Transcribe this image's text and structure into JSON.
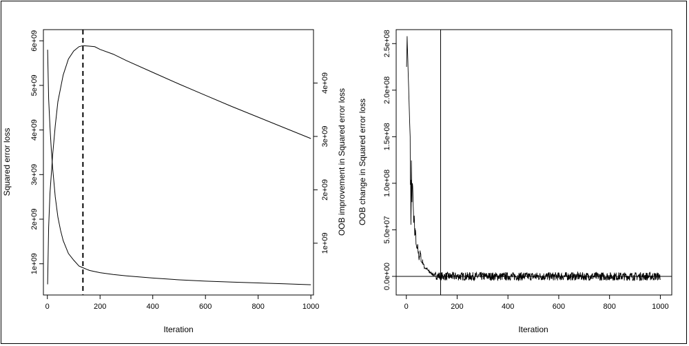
{
  "chart_data": [
    {
      "type": "line",
      "title": "",
      "xlabel": "Iteration",
      "ylabel": "Squared error loss",
      "ylabel_right": "OOB improvement in Squared error loss",
      "xlim": [
        0,
        1000
      ],
      "ylim": [
        530000000,
        6000000000
      ],
      "ylim_right": [
        230000000,
        4800000000
      ],
      "x_ticks": [
        "0",
        "200",
        "400",
        "600",
        "800",
        "1000"
      ],
      "y_ticks": [
        "1e+09",
        "2e+09",
        "3e+09",
        "4e+09",
        "5e+09",
        "6e+09"
      ],
      "y_ticks_right": [
        "1e+09",
        "2e+09",
        "3e+09",
        "4e+09"
      ],
      "vline": {
        "x": 135,
        "style": "dashed"
      },
      "grid": false,
      "series": [
        {
          "axis": "left",
          "x": [
            1,
            5,
            10,
            15,
            20,
            30,
            40,
            50,
            60,
            80,
            100,
            120,
            135,
            160,
            200,
            250,
            300,
            400,
            500,
            600,
            700,
            800,
            900,
            1000
          ],
          "y": [
            5800000000,
            4700000000,
            4050000000,
            3550000000,
            3150000000,
            2500000000,
            2050000000,
            1750000000,
            1520000000,
            1230000000,
            1080000000,
            950000000,
            910000000,
            850000000,
            800000000,
            760000000,
            730000000,
            680000000,
            640000000,
            610000000,
            590000000,
            570000000,
            550000000,
            530000000
          ]
        },
        {
          "axis": "right",
          "x": [
            1,
            5,
            10,
            20,
            30,
            40,
            60,
            80,
            100,
            120,
            135,
            160,
            180,
            200,
            250,
            300,
            400,
            500,
            600,
            700,
            800,
            900,
            1000
          ],
          "y": [
            230000000,
            1300000000,
            1950000000,
            2650000000,
            3200000000,
            3650000000,
            4150000000,
            4450000000,
            4600000000,
            4680000000,
            4700000000,
            4690000000,
            4680000000,
            4630000000,
            4540000000,
            4420000000,
            4200000000,
            3980000000,
            3770000000,
            3560000000,
            3360000000,
            3160000000,
            2960000000
          ]
        }
      ]
    },
    {
      "type": "line",
      "title": "",
      "xlabel": "Iteration",
      "ylabel": "OOB change in Squared error loss",
      "xlim": [
        0,
        1000
      ],
      "ylim": [
        -20000000,
        265000000
      ],
      "x_ticks": [
        "0",
        "200",
        "400",
        "600",
        "800",
        "1000"
      ],
      "y_ticks": [
        "0.0e+00",
        "5.0e+07",
        "1.0e+08",
        "1.5e+08",
        "2.0e+08",
        "2.5e+08"
      ],
      "hline": {
        "y": 0
      },
      "vline": {
        "x": 135,
        "style": "solid"
      },
      "grid": false,
      "series": [
        {
          "noise_from_x": 115,
          "noise_amplitude": 4500000,
          "x": [
            1,
            3,
            5,
            8,
            10,
            12,
            15,
            18,
            20,
            22,
            25,
            28,
            30,
            33,
            35,
            38,
            40,
            45,
            50,
            55,
            60,
            65,
            70,
            80,
            90,
            100,
            110,
            120,
            130,
            140,
            150,
            170,
            200,
            250,
            300,
            1000
          ],
          "y": [
            225000000,
            258000000,
            240000000,
            212000000,
            195000000,
            175000000,
            150000000,
            60000000,
            115000000,
            85000000,
            95000000,
            62000000,
            65000000,
            52000000,
            45000000,
            40000000,
            28000000,
            30000000,
            20000000,
            25000000,
            15000000,
            16000000,
            10000000,
            8000000,
            5000000,
            3000000,
            1500000,
            800000,
            500000,
            200000,
            0,
            0,
            0,
            0,
            0,
            0
          ]
        }
      ]
    }
  ]
}
